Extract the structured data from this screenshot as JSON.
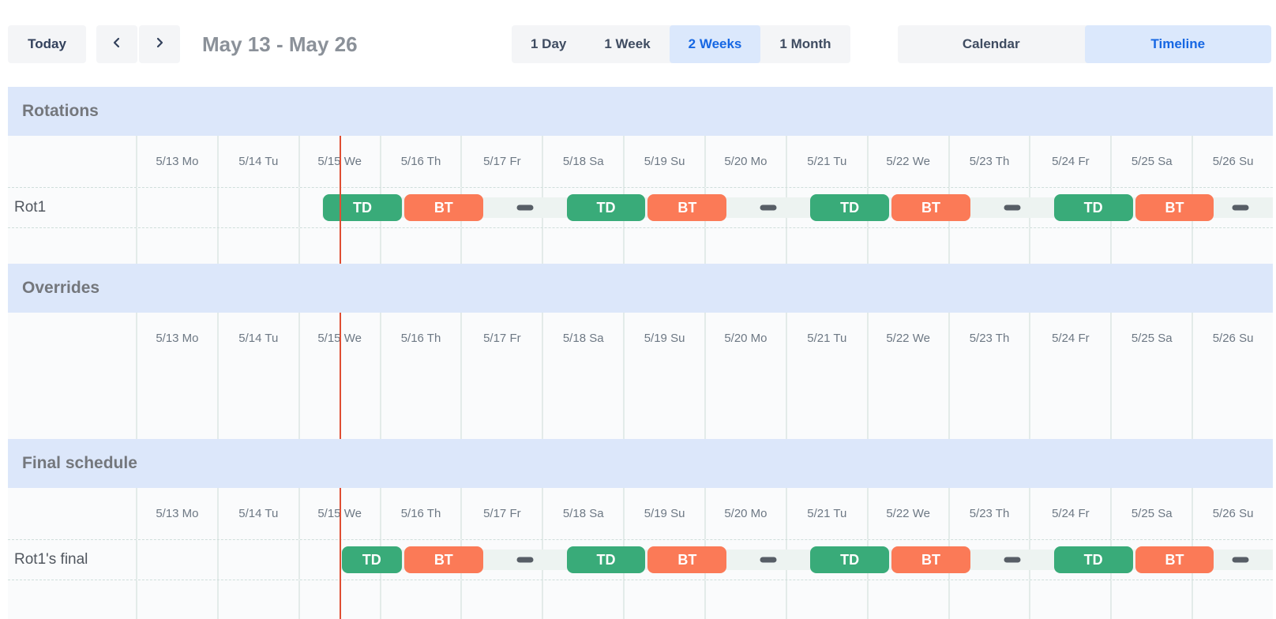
{
  "toolbar": {
    "today_label": "Today",
    "nav": {
      "prev_icon": "chevron-left",
      "next_icon": "chevron-right"
    },
    "title": "May 13 - May 26",
    "zoom_options": [
      {
        "label": "1 Day",
        "selected": false
      },
      {
        "label": "1 Week",
        "selected": false
      },
      {
        "label": "2 Weeks",
        "selected": true
      },
      {
        "label": "1 Month",
        "selected": false
      }
    ],
    "view_options": [
      {
        "label": "Calendar",
        "selected": false
      },
      {
        "label": "Timeline",
        "selected": true
      }
    ]
  },
  "colors": {
    "green": "#39ab79",
    "orange": "#fb7a57",
    "now_line": "#df4e33",
    "section_band": "#dce7fa",
    "selected_bg": "#dbe8fc",
    "selected_text": "#1667e3",
    "track": "#edf3f1",
    "dash": "#575e66"
  },
  "timeline": {
    "day_labels": [
      "5/13 Mo",
      "5/14 Tu",
      "5/15 We",
      "5/16 Th",
      "5/17 Fr",
      "5/18 Sa",
      "5/19 Su",
      "5/20 Mo",
      "5/21 Tu",
      "5/22 We",
      "5/23 Th",
      "5/24 Fr",
      "5/25 Sa",
      "5/26 Su"
    ],
    "now_day_fraction": 2.52,
    "sections": [
      {
        "title": "Rotations",
        "rows": [
          {
            "label": "Rot1",
            "track_start": 2.29,
            "shifts": [
              {
                "kind": "bar",
                "label": "TD",
                "color": "green",
                "start": 2.29,
                "end": 3.29
              },
              {
                "kind": "bar",
                "label": "BT",
                "color": "orange",
                "start": 3.29,
                "end": 4.29
              },
              {
                "kind": "gap",
                "center": 4.79
              },
              {
                "kind": "bar",
                "label": "TD",
                "color": "green",
                "start": 5.29,
                "end": 6.29
              },
              {
                "kind": "bar",
                "label": "BT",
                "color": "orange",
                "start": 6.29,
                "end": 7.29
              },
              {
                "kind": "gap",
                "center": 7.79
              },
              {
                "kind": "bar",
                "label": "TD",
                "color": "green",
                "start": 8.29,
                "end": 9.29
              },
              {
                "kind": "bar",
                "label": "BT",
                "color": "orange",
                "start": 9.29,
                "end": 10.29
              },
              {
                "kind": "gap",
                "center": 10.79
              },
              {
                "kind": "bar",
                "label": "TD",
                "color": "green",
                "start": 11.29,
                "end": 12.29
              },
              {
                "kind": "bar",
                "label": "BT",
                "color": "orange",
                "start": 12.29,
                "end": 13.29
              },
              {
                "kind": "gap",
                "center": 13.6
              }
            ]
          }
        ]
      },
      {
        "title": "Overrides",
        "rows": []
      },
      {
        "title": "Final schedule",
        "rows": [
          {
            "label": "Rot1's final",
            "track_start": 2.52,
            "shifts": [
              {
                "kind": "bar",
                "label": "TD",
                "color": "green",
                "start": 2.52,
                "end": 3.29
              },
              {
                "kind": "bar",
                "label": "BT",
                "color": "orange",
                "start": 3.29,
                "end": 4.29
              },
              {
                "kind": "gap",
                "center": 4.79
              },
              {
                "kind": "bar",
                "label": "TD",
                "color": "green",
                "start": 5.29,
                "end": 6.29
              },
              {
                "kind": "bar",
                "label": "BT",
                "color": "orange",
                "start": 6.29,
                "end": 7.29
              },
              {
                "kind": "gap",
                "center": 7.79
              },
              {
                "kind": "bar",
                "label": "TD",
                "color": "green",
                "start": 8.29,
                "end": 9.29
              },
              {
                "kind": "bar",
                "label": "BT",
                "color": "orange",
                "start": 9.29,
                "end": 10.29
              },
              {
                "kind": "gap",
                "center": 10.79
              },
              {
                "kind": "bar",
                "label": "TD",
                "color": "green",
                "start": 11.29,
                "end": 12.29
              },
              {
                "kind": "bar",
                "label": "BT",
                "color": "orange",
                "start": 12.29,
                "end": 13.29
              },
              {
                "kind": "gap",
                "center": 13.6
              }
            ]
          }
        ]
      }
    ]
  }
}
